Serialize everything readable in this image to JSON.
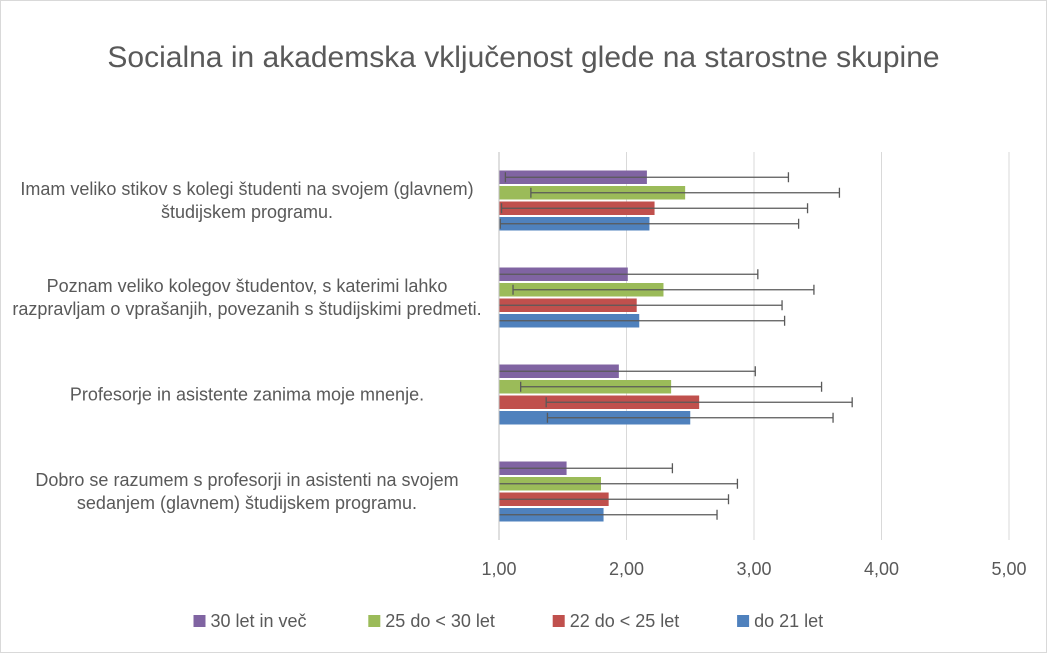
{
  "chart_data": {
    "type": "hbar",
    "title": "Socialna in akademska vključenost glede na starostne skupine",
    "categories": [
      "Imam veliko stikov s kolegi študenti na svojem (glavnem) študijskem programu.",
      "Poznam veliko kolegov študentov, s katerimi lahko razpravljam o vprašanjih, povezanih s študijskimi predmeti.",
      "Profesorje in asistente zanima moje mnenje.",
      "Dobro se razumem s profesorji in asistenti na svojem sedanjem (glavnem) študijskem programu."
    ],
    "series": [
      {
        "name": "30 let in več",
        "color": "#8064a2",
        "values": [
          2.16,
          2.01,
          1.94,
          1.53
        ],
        "errors": [
          1.11,
          1.02,
          1.07,
          0.83
        ]
      },
      {
        "name": "25 do < 30 let",
        "color": "#9bbb59",
        "values": [
          2.46,
          2.29,
          2.35,
          1.8
        ],
        "errors": [
          1.21,
          1.18,
          1.18,
          1.07
        ]
      },
      {
        "name": "22 do < 25 let",
        "color": "#c0504d",
        "values": [
          2.22,
          2.08,
          2.57,
          1.86
        ],
        "errors": [
          1.2,
          1.14,
          1.2,
          0.94
        ]
      },
      {
        "name": "do 21 let",
        "color": "#4f81bd",
        "values": [
          2.18,
          2.1,
          2.5,
          1.82
        ],
        "errors": [
          1.17,
          1.14,
          1.12,
          0.89
        ]
      }
    ],
    "xlim": [
      1,
      5
    ],
    "xticks": [
      {
        "value": 1,
        "label": "1,00"
      },
      {
        "value": 2,
        "label": "2,00"
      },
      {
        "value": 3,
        "label": "3,00"
      },
      {
        "value": 4,
        "label": "4,00"
      },
      {
        "value": 5,
        "label": "5,00"
      }
    ],
    "grid": true,
    "error_bars": true,
    "legend": "bottom"
  }
}
